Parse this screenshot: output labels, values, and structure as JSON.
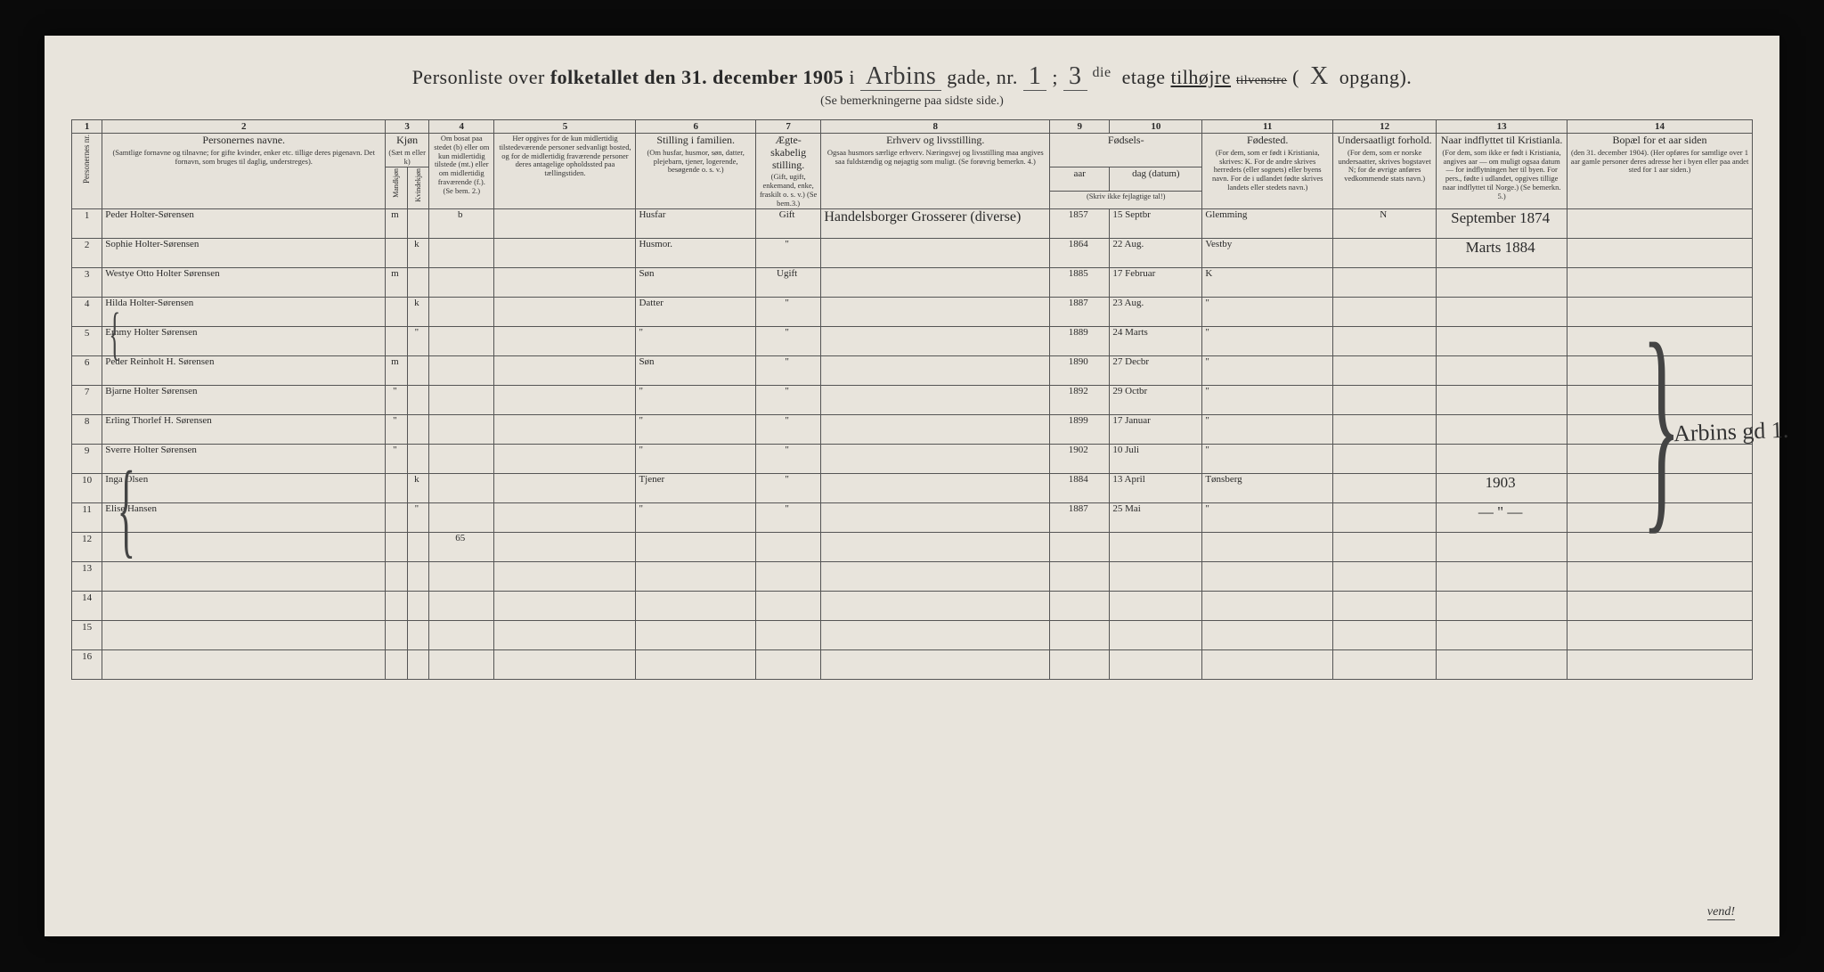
{
  "title": {
    "prefix": "Personliste over ",
    "bold1": "folketallet den 31. december 1905",
    "in": " i ",
    "street": "Arbins",
    "gade": "gade, nr.",
    "nr": "1",
    "semicolon": " ; ",
    "etage_num": "3",
    "etage_ord": "die",
    "etage": "etage",
    "tilhojre": "tilhøjre",
    "tilvenstre": "tilvenstre",
    "paren_open": " (",
    "opgang_letter": "X",
    "opgang": "opgang).",
    "subtitle": "(Se bemerkningerne paa sidste side.)"
  },
  "colnums": [
    "1",
    "2",
    "3",
    "4",
    "5",
    "6",
    "7",
    "8",
    "9",
    "10",
    "11",
    "12",
    "13",
    "14"
  ],
  "headers": {
    "c1": "Personernes nr.",
    "c2_main": "Personernes navne.",
    "c2_sub": "(Samtlige fornavne og tilnavne; for gifte kvinder, enker etc. tillige deres pigenavn. Det fornavn, som bruges til daglig, understreges).",
    "c3_main": "Kjøn",
    "c3_sub": "(Sæt m eller k)",
    "c3a": "Mandkjøn",
    "c3b": "Kvindekjøn",
    "c4_sub": "Om bosat paa stedet (b) eller om kun midlertidig tilstede (mt.) eller om midlertidig fraværende (f.). (Se bem. 2.)",
    "c5_sub": "Her opgives for de kun midlertidig tilstedeværende personer sedvanligt bosted, og for de midlertidig fraværende personer deres antagelige opholdssted paa tællingstiden.",
    "c6_main": "Stilling i familien.",
    "c6_sub": "(Om husfar, husmor, søn, datter, plejebarn, tjener, logerende, besøgende o. s. v.)",
    "c7_main": "Ægte-skabelig stilling.",
    "c7_sub": "(Gift, ugift, enkemand, enke, fraskilt o. s. v.) (Se bem.3.)",
    "c8_main": "Erhverv og livsstilling.",
    "c8_sub": "Ogsaa husmors særlige erhverv. Næringsvej og livsstilling maa angives saa fuldstændig og nøjagtig som muligt. (Se forøvrig bemerkn. 4.)",
    "c9_10_main": "Fødsels-",
    "c9": "aar",
    "c10": "dag (datum)",
    "c9_10_sub": "(Skriv ikke fejlagtige tal!)",
    "c11_main": "Fødested.",
    "c11_sub": "(For dem, som er født i Kristiania, skrives: K. For de andre skrives herredets (eller sognets) eller byens navn. For de i udlandet fødte skrives landets eller stedets navn.)",
    "c12_main": "Undersaatligt forhold.",
    "c12_sub": "(For dem, som er norske undersaatter, skrives bogstavet N; for de øvrige anføres vedkommende stats navn.)",
    "c13_main": "Naar indflyttet til Kristianla.",
    "c13_sub": "(For dem, som ikke er født i Kristiania, angives aar — om muligt ogsaa datum — for indflytningen her til byen. For pers., fødte i udlandet, opgives tillige naar indflyttet til Norge.) (Se bemerkn. 5.)",
    "c14_main": "Bopæl for et aar siden",
    "c14_sub": "(den 31. december 1904). (Her opføres for samtlige over 1 aar gamle personer deres adresse her i byen eller paa andet sted for 1 aar siden.)"
  },
  "rows": [
    {
      "n": "1",
      "x": "",
      "name": "Peder Holter-Sørensen",
      "sex": "m",
      "res": "b",
      "stilling": "Husfar",
      "aegte": "Gift",
      "erhverv": "Handelsborger Grosserer (diverse)",
      "aar": "1857",
      "dag": "15 Septbr",
      "fodested": "Glemming",
      "under": "N",
      "indfl": "September 1874",
      "bopael": ""
    },
    {
      "n": "2",
      "x": "",
      "name": "Sophie Holter-Sørensen",
      "sex": "k",
      "res": "",
      "stilling": "Husmor.",
      "aegte": "\"",
      "erhverv": "",
      "aar": "1864",
      "dag": "22 Aug.",
      "fodested": "Vestby",
      "under": "",
      "indfl": "Marts 1884",
      "bopael": ""
    },
    {
      "n": "3",
      "x": "×",
      "name": "Westye Otto Holter Sørensen",
      "sex": "m",
      "res": "",
      "stilling": "Søn",
      "aegte": "Ugift",
      "erhverv": "",
      "aar": "1885",
      "dag": "17 Februar",
      "fodested": "K",
      "under": "",
      "indfl": "",
      "bopael": ""
    },
    {
      "n": "4",
      "x": "×",
      "name": "Hilda Holter-Sørensen",
      "sex": "k",
      "res": "",
      "stilling": "Datter",
      "aegte": "\"",
      "erhverv": "",
      "aar": "1887",
      "dag": "23 Aug.",
      "fodested": "\"",
      "under": "",
      "indfl": "",
      "bopael": ""
    },
    {
      "n": "5",
      "x": "×",
      "name": "Emmy Holter Sørensen",
      "sex": "\"",
      "res": "",
      "stilling": "\"",
      "aegte": "\"",
      "erhverv": "",
      "aar": "1889",
      "dag": "24 Marts",
      "fodested": "\"",
      "under": "",
      "indfl": "",
      "bopael": ""
    },
    {
      "n": "6",
      "x": "",
      "name": "Peder Reinholt H. Sørensen",
      "sex": "m",
      "res": "",
      "stilling": "Søn",
      "aegte": "\"",
      "erhverv": "",
      "aar": "1890",
      "dag": "27 Decbr",
      "fodested": "\"",
      "under": "",
      "indfl": "",
      "bopael": ""
    },
    {
      "n": "7",
      "x": "",
      "name": "Bjarne Holter Sørensen",
      "sex": "\"",
      "res": "",
      "stilling": "\"",
      "aegte": "\"",
      "erhverv": "",
      "aar": "1892",
      "dag": "29 Octbr",
      "fodested": "\"",
      "under": "",
      "indfl": "",
      "bopael": ""
    },
    {
      "n": "8",
      "x": "",
      "name": "Erling Thorlef H. Sørensen",
      "sex": "\"",
      "res": "",
      "stilling": "\"",
      "aegte": "\"",
      "erhverv": "",
      "aar": "1899",
      "dag": "17 Januar",
      "fodested": "\"",
      "under": "",
      "indfl": "",
      "bopael": ""
    },
    {
      "n": "9",
      "x": "",
      "name": "Sverre Holter Sørensen",
      "sex": "\"",
      "res": "",
      "stilling": "\"",
      "aegte": "\"",
      "erhverv": "",
      "aar": "1902",
      "dag": "10 Juli",
      "fodested": "\"",
      "under": "",
      "indfl": "",
      "bopael": ""
    },
    {
      "n": "10",
      "x": "×",
      "name": "Inga Olsen",
      "sex": "k",
      "res": "",
      "stilling": "Tjener",
      "aegte": "\"",
      "erhverv": "",
      "aar": "1884",
      "dag": "13 April",
      "fodested": "Tønsberg",
      "under": "",
      "indfl": "1903",
      "bopael": ""
    },
    {
      "n": "11",
      "x": "×",
      "name": "Elise Hansen",
      "sex": "\"",
      "res": "",
      "stilling": "\"",
      "aegte": "\"",
      "erhverv": "",
      "aar": "1887",
      "dag": "25 Mai",
      "fodested": "\"",
      "under": "",
      "indfl": "— \" —",
      "bopael": ""
    },
    {
      "n": "12",
      "x": "",
      "name": "",
      "sex": "",
      "res": "65",
      "stilling": "",
      "aegte": "",
      "erhverv": "",
      "aar": "",
      "dag": "",
      "fodested": "",
      "under": "",
      "indfl": "",
      "bopael": ""
    },
    {
      "n": "13",
      "x": "",
      "name": "",
      "sex": "",
      "res": "",
      "stilling": "",
      "aegte": "",
      "erhverv": "",
      "aar": "",
      "dag": "",
      "fodested": "",
      "under": "",
      "indfl": "",
      "bopael": ""
    },
    {
      "n": "14",
      "x": "",
      "name": "",
      "sex": "",
      "res": "",
      "stilling": "",
      "aegte": "",
      "erhverv": "",
      "aar": "",
      "dag": "",
      "fodested": "",
      "under": "",
      "indfl": "",
      "bopael": ""
    },
    {
      "n": "15",
      "x": "",
      "name": "",
      "sex": "",
      "res": "",
      "stilling": "",
      "aegte": "",
      "erhverv": "",
      "aar": "",
      "dag": "",
      "fodested": "",
      "under": "",
      "indfl": "",
      "bopael": ""
    },
    {
      "n": "16",
      "x": "",
      "name": "",
      "sex": "",
      "res": "",
      "stilling": "",
      "aegte": "",
      "erhverv": "",
      "aar": "",
      "dag": "",
      "fodested": "",
      "under": "",
      "indfl": "",
      "bopael": ""
    }
  ],
  "vend": "vend!",
  "brace_label": "Arbins gd 1."
}
